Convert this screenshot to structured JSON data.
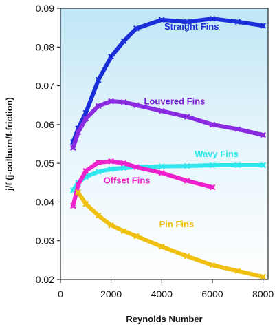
{
  "chart_data": {
    "type": "line",
    "title": "",
    "xlabel": "Reynolds Number",
    "ylabel": "j/f (j-colburn/f-friction)",
    "xlim": [
      0,
      8200
    ],
    "ylim": [
      0.02,
      0.09
    ],
    "xticks": [
      0,
      2000,
      4000,
      6000,
      8000
    ],
    "xtick_labels": [
      "0",
      "2000",
      "4000",
      "6000",
      "8000"
    ],
    "yticks": [
      0.02,
      0.03,
      0.04,
      0.05,
      0.06,
      0.07,
      0.08,
      0.09
    ],
    "ytick_labels": [
      "0.02",
      "0.03",
      "0.04",
      "0.05",
      "0.06",
      "0.07",
      "0.08",
      "0.09"
    ],
    "grid": false,
    "background": "light-blue gradient",
    "series": [
      {
        "name": "Straight Fins",
        "color": "#1a2fd8",
        "x": [
          500,
          700,
          1000,
          1500,
          2000,
          2500,
          3000,
          4000,
          5000,
          6000,
          7000,
          8000
        ],
        "y": [
          0.0555,
          0.059,
          0.063,
          0.0715,
          0.0775,
          0.0815,
          0.0848,
          0.087,
          0.0865,
          0.0873,
          0.0865,
          0.0855
        ]
      },
      {
        "name": "Louvered Fins",
        "color": "#8a2be2",
        "x": [
          500,
          700,
          1000,
          1500,
          2000,
          2500,
          3000,
          4000,
          5000,
          6000,
          7000,
          8000
        ],
        "y": [
          0.054,
          0.058,
          0.0615,
          0.0648,
          0.066,
          0.0658,
          0.065,
          0.0635,
          0.062,
          0.06,
          0.0588,
          0.0573
        ]
      },
      {
        "name": "Wavy Fins",
        "color": "#2ee6ee",
        "x": [
          500,
          700,
          1000,
          1500,
          2000,
          2500,
          3000,
          4000,
          5000,
          6000,
          7000,
          8000
        ],
        "y": [
          0.043,
          0.045,
          0.0465,
          0.0478,
          0.0485,
          0.0488,
          0.049,
          0.0492,
          0.0493,
          0.0495,
          0.0495,
          0.0495
        ]
      },
      {
        "name": "Offset Fins",
        "color": "#ee22cc",
        "x": [
          500,
          700,
          1000,
          1500,
          2000,
          2500,
          3000,
          4000,
          5000,
          6000
        ],
        "y": [
          0.039,
          0.0445,
          0.048,
          0.0502,
          0.0505,
          0.05,
          0.049,
          0.0475,
          0.0455,
          0.0438
        ]
      },
      {
        "name": "Pin Fins",
        "color": "#f0c010",
        "x": [
          700,
          1000,
          1500,
          2000,
          2500,
          3000,
          4000,
          5000,
          6000,
          7000,
          8000
        ],
        "y": [
          0.0425,
          0.0395,
          0.0365,
          0.034,
          0.0325,
          0.0312,
          0.0285,
          0.026,
          0.0237,
          0.0222,
          0.0207
        ]
      }
    ],
    "annotations": [
      {
        "text": "Straight Fins",
        "series": "Straight Fins",
        "color": "#1a2fd8",
        "at_x": 4100,
        "at_y": 0.0845
      },
      {
        "text": "Louvered Fins",
        "series": "Louvered Fins",
        "color": "#7a1fd0",
        "at_x": 3300,
        "at_y": 0.0652
      },
      {
        "text": "Wavy Fins",
        "series": "Wavy Fins",
        "color": "#2ee6ee",
        "at_x": 5300,
        "at_y": 0.0516
      },
      {
        "text": "Offset Fins",
        "series": "Offset Fins",
        "color": "#ee22cc",
        "at_x": 1700,
        "at_y": 0.0448
      },
      {
        "text": "Pin Fins",
        "series": "Pin Fins",
        "color": "#f0c010",
        "at_x": 3900,
        "at_y": 0.0335
      }
    ]
  }
}
